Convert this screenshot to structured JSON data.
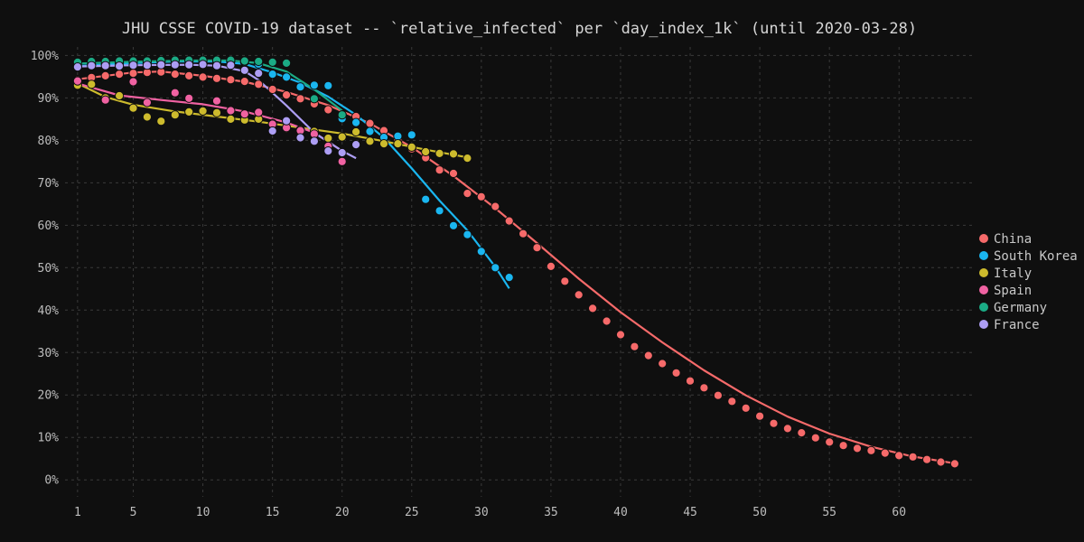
{
  "chart_data": {
    "type": "scatter",
    "title": "JHU CSSE COVID-19 dataset -- `relative_infected` per `day_index_1k` (until 2020-03-28)",
    "xlabel": "",
    "ylabel": "",
    "xlim": [
      0.1,
      65.5
    ],
    "ylim": [
      -4,
      102
    ],
    "x_ticks": [
      1,
      5,
      10,
      15,
      20,
      25,
      30,
      35,
      40,
      45,
      50,
      55,
      60
    ],
    "y_ticks": [
      0,
      10,
      20,
      30,
      40,
      50,
      60,
      70,
      80,
      90,
      100
    ],
    "y_tick_format": "%",
    "grid": true,
    "legend_position": "right",
    "series": [
      {
        "name": "China",
        "color": "#f66a6a",
        "x": [
          1,
          2,
          3,
          4,
          5,
          6,
          7,
          8,
          9,
          10,
          11,
          12,
          13,
          14,
          15,
          16,
          17,
          18,
          19,
          20,
          21,
          22,
          23,
          24,
          25,
          26,
          27,
          28,
          29,
          30,
          31,
          32,
          33,
          34,
          35,
          36,
          37,
          38,
          39,
          40,
          41,
          42,
          43,
          44,
          45,
          46,
          47,
          48,
          49,
          50,
          51,
          52,
          53,
          54,
          55,
          56,
          57,
          58,
          59,
          60,
          61,
          62,
          63,
          64
        ],
        "y": [
          94.2,
          94.8,
          95.2,
          95.6,
          95.8,
          96.0,
          96.1,
          95.6,
          95.2,
          94.9,
          94.6,
          94.3,
          93.9,
          93.2,
          92.0,
          90.7,
          89.8,
          88.6,
          87.2,
          86.0,
          85.6,
          84.0,
          82.3,
          80.0,
          78.0,
          75.9,
          73.0,
          72.2,
          67.5,
          66.7,
          64.4,
          61.0,
          58.0,
          54.7,
          50.3,
          46.8,
          43.6,
          40.4,
          37.4,
          34.2,
          31.4,
          29.3,
          27.4,
          25.2,
          23.3,
          21.7,
          19.9,
          18.5,
          16.9,
          15.0,
          13.3,
          12.1,
          11.1,
          9.9,
          8.9,
          8.1,
          7.4,
          6.9,
          6.3,
          5.7,
          5.4,
          4.8,
          4.2,
          3.8
        ],
        "trend": [
          [
            1,
            94.4
          ],
          [
            5,
            96.0
          ],
          [
            7,
            96.2
          ],
          [
            10,
            95.2
          ],
          [
            13,
            93.8
          ],
          [
            16,
            91.4
          ],
          [
            19,
            88.3
          ],
          [
            22,
            84.0
          ],
          [
            25,
            78.4
          ],
          [
            28,
            71.6
          ],
          [
            31,
            64.0
          ],
          [
            34,
            55.8
          ],
          [
            37,
            47.4
          ],
          [
            40,
            39.5
          ],
          [
            43,
            32.4
          ],
          [
            46,
            25.8
          ],
          [
            49,
            19.9
          ],
          [
            52,
            14.9
          ],
          [
            55,
            10.9
          ],
          [
            58,
            7.8
          ],
          [
            61,
            5.5
          ],
          [
            64,
            3.9
          ]
        ]
      },
      {
        "name": "South Korea",
        "color": "#1ab6f0",
        "x": [
          1,
          2,
          3,
          4,
          5,
          6,
          7,
          8,
          9,
          10,
          11,
          12,
          13,
          14,
          15,
          16,
          17,
          18,
          19,
          20,
          21,
          22,
          23,
          24,
          25,
          26,
          27,
          28,
          29,
          30,
          31,
          32
        ],
        "y": [
          97.5,
          97.8,
          98.0,
          98.2,
          98.4,
          98.4,
          98.6,
          98.8,
          98.7,
          98.6,
          98.7,
          98.6,
          98.5,
          98.0,
          95.6,
          94.9,
          92.6,
          93.0,
          92.9,
          85.1,
          84.2,
          82.1,
          80.7,
          81.0,
          81.3,
          66.1,
          63.4,
          59.9,
          57.8,
          53.8,
          50.0,
          47.7
        ],
        "trend": [
          [
            1,
            97.5
          ],
          [
            5,
            98.2
          ],
          [
            8,
            98.6
          ],
          [
            11,
            98.6
          ],
          [
            13,
            98.0
          ],
          [
            15,
            96.0
          ],
          [
            17,
            93.6
          ],
          [
            19,
            90.3
          ],
          [
            21,
            86.0
          ],
          [
            23,
            80.6
          ],
          [
            25,
            73.4
          ],
          [
            27,
            65.8
          ],
          [
            29,
            58.8
          ],
          [
            31,
            50.2
          ],
          [
            32,
            45.1
          ]
        ]
      },
      {
        "name": "Italy",
        "color": "#cdbb2d",
        "x": [
          1,
          2,
          3,
          4,
          5,
          6,
          7,
          8,
          9,
          10,
          11,
          12,
          13,
          14,
          15,
          16,
          17,
          18,
          19,
          20,
          21,
          22,
          23,
          24,
          25,
          26,
          27,
          28,
          29
        ],
        "y": [
          93.0,
          93.2,
          90.0,
          90.5,
          87.6,
          85.5,
          84.5,
          86.0,
          86.7,
          86.9,
          86.5,
          85.0,
          84.8,
          85.0,
          84.0,
          82.8,
          82.5,
          82.1,
          80.5,
          80.8,
          82.0,
          79.8,
          79.2,
          79.2,
          78.4,
          77.3,
          76.9,
          76.8,
          75.8
        ],
        "trend": [
          [
            1,
            93.4
          ],
          [
            3,
            90.2
          ],
          [
            5,
            88.4
          ],
          [
            8,
            86.8
          ],
          [
            11,
            85.6
          ],
          [
            14,
            84.4
          ],
          [
            17,
            83.0
          ],
          [
            20,
            81.6
          ],
          [
            23,
            79.8
          ],
          [
            26,
            77.8
          ],
          [
            29,
            76.0
          ]
        ]
      },
      {
        "name": "Spain",
        "color": "#f062a2",
        "x": [
          1,
          3,
          5,
          6,
          8,
          9,
          11,
          12,
          13,
          14,
          15,
          16,
          17,
          18,
          19,
          20
        ],
        "y": [
          94.0,
          89.5,
          93.8,
          88.9,
          91.2,
          89.9,
          89.3,
          87.0,
          86.2,
          86.6,
          83.8,
          83.0,
          82.3,
          81.5,
          78.6,
          75.0
        ],
        "trend": [
          [
            1,
            93.4
          ],
          [
            4,
            90.6
          ],
          [
            7,
            89.5
          ],
          [
            10,
            88.5
          ],
          [
            13,
            86.8
          ],
          [
            16,
            84.2
          ],
          [
            18,
            81.8
          ],
          [
            20,
            77.5
          ]
        ]
      },
      {
        "name": "Germany",
        "color": "#1bab85",
        "x": [
          1,
          2,
          3,
          4,
          5,
          6,
          7,
          8,
          9,
          10,
          11,
          12,
          13,
          14,
          15,
          16,
          18,
          20
        ],
        "y": [
          98.4,
          98.6,
          98.6,
          98.7,
          98.7,
          98.7,
          98.8,
          98.9,
          98.9,
          98.9,
          98.9,
          98.9,
          98.7,
          98.6,
          98.4,
          98.2,
          89.8,
          86.0
        ],
        "trend": [
          [
            1,
            98.1
          ],
          [
            5,
            98.5
          ],
          [
            9,
            98.8
          ],
          [
            12,
            98.8
          ],
          [
            14,
            98.2
          ],
          [
            16,
            96.2
          ],
          [
            18,
            92.0
          ],
          [
            20,
            87.0
          ]
        ]
      },
      {
        "name": "France",
        "color": "#ad9ef4",
        "x": [
          1,
          2,
          3,
          4,
          5,
          6,
          7,
          8,
          9,
          10,
          11,
          12,
          13,
          14,
          15,
          16,
          17,
          18,
          19,
          20,
          21
        ],
        "y": [
          97.3,
          97.6,
          97.6,
          97.5,
          97.7,
          97.7,
          97.8,
          97.8,
          97.8,
          97.9,
          97.6,
          97.7,
          96.5,
          95.8,
          82.2,
          84.6,
          80.6,
          79.8,
          77.5,
          77.1,
          79.0
        ],
        "trend": [
          [
            1,
            97.4
          ],
          [
            5,
            97.7
          ],
          [
            9,
            97.8
          ],
          [
            11,
            97.6
          ],
          [
            13,
            96.3
          ],
          [
            14,
            94.2
          ],
          [
            16,
            88.2
          ],
          [
            18,
            81.8
          ],
          [
            20,
            77.5
          ],
          [
            21,
            75.8
          ]
        ]
      }
    ]
  }
}
